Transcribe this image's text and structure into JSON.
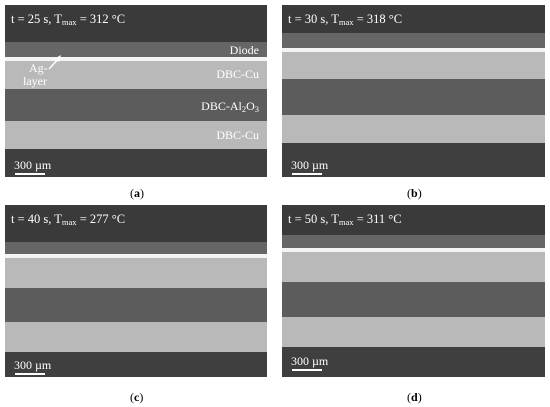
{
  "panels": [
    {
      "id": "a",
      "header": {
        "pre": "t = 25 s, T",
        "sub": "max",
        "post": " = 312 °C"
      },
      "scale": "300 µm",
      "caption": "a"
    },
    {
      "id": "b",
      "header": {
        "pre": "t = 30 s, T",
        "sub": "max",
        "post": " = 318 °C"
      },
      "scale": "300 µm",
      "caption": "b"
    },
    {
      "id": "c",
      "header": {
        "pre": "t = 40 s, T",
        "sub": "max",
        "post": " = 277 °C"
      },
      "scale": "300 µm",
      "caption": "c"
    },
    {
      "id": "d",
      "header": {
        "pre": "t = 50 s, T",
        "sub": "max",
        "post": " = 311 °C"
      },
      "scale": "300 µm",
      "caption": "d"
    }
  ],
  "labels": {
    "diode": "Diode",
    "ag_line1": "Ag-",
    "ag_line2": "layer",
    "dbc_cu_top": "DBC-Cu",
    "dbc_al_pre": "DBC-Al",
    "dbc_al_sub": "2",
    "dbc_al_mid": "O",
    "dbc_al_sub2": "3",
    "dbc_cu_bottom": "DBC-Cu"
  },
  "colors": {
    "background": "#3e3e3e",
    "diode": "#666666",
    "ag_layer": "#f4f4f4",
    "dbc_cu": "#b9b9b9",
    "dbc_al2o3": "#5c5c5c"
  }
}
